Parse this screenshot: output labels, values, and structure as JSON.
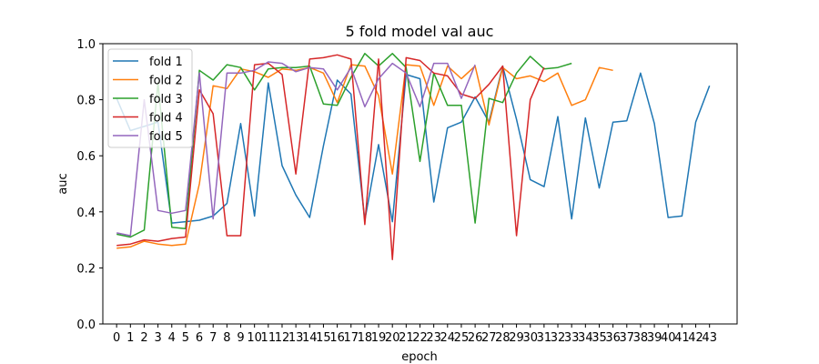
{
  "chart_data": {
    "type": "line",
    "title": "5 fold model val auc",
    "xlabel": "epoch",
    "ylabel": "auc",
    "xlim": [
      -1,
      45
    ],
    "ylim": [
      0.0,
      1.0
    ],
    "xticks": [
      0,
      1,
      2,
      3,
      4,
      5,
      6,
      7,
      8,
      9,
      10,
      11,
      12,
      13,
      14,
      15,
      16,
      17,
      18,
      19,
      20,
      21,
      22,
      23,
      24,
      25,
      26,
      27,
      28,
      29,
      30,
      31,
      32,
      33,
      34,
      35,
      36,
      37,
      38,
      39,
      40,
      41,
      42,
      43
    ],
    "yticks": [
      "0.0",
      "0.2",
      "0.4",
      "0.6",
      "0.8",
      "1.0"
    ],
    "legend_position": "top-left",
    "grid": false,
    "series": [
      {
        "name": "fold 1",
        "color": "#1f77b4",
        "values": [
          0.805,
          0.69,
          0.705,
          0.72,
          0.36,
          0.365,
          0.37,
          0.385,
          0.43,
          0.715,
          0.385,
          0.86,
          0.565,
          0.46,
          0.38,
          0.635,
          0.87,
          0.82,
          0.37,
          0.64,
          0.365,
          0.89,
          0.875,
          0.435,
          0.7,
          0.72,
          0.81,
          0.72,
          0.92,
          0.73,
          0.515,
          0.49,
          0.74,
          0.375,
          0.735,
          0.485,
          0.72,
          0.725,
          0.895,
          0.715,
          0.38,
          0.385,
          0.72,
          0.85
        ]
      },
      {
        "name": "fold 2",
        "color": "#ff7f0e",
        "values": [
          0.27,
          0.275,
          0.295,
          0.285,
          0.28,
          0.285,
          0.5,
          0.85,
          0.84,
          0.91,
          0.9,
          0.88,
          0.91,
          0.905,
          0.915,
          0.895,
          0.79,
          0.925,
          0.92,
          0.815,
          0.535,
          0.925,
          0.92,
          0.78,
          0.92,
          0.875,
          0.92,
          0.71,
          0.915,
          0.875,
          0.885,
          0.865,
          0.895,
          0.78,
          0.8,
          0.915,
          0.905
        ]
      },
      {
        "name": "fold 3",
        "color": "#2ca02c",
        "values": [
          0.32,
          0.31,
          0.335,
          0.86,
          0.345,
          0.34,
          0.905,
          0.87,
          0.925,
          0.915,
          0.835,
          0.91,
          0.915,
          0.915,
          0.92,
          0.785,
          0.78,
          0.88,
          0.965,
          0.92,
          0.965,
          0.915,
          0.58,
          0.895,
          0.78,
          0.78,
          0.36,
          0.805,
          0.79,
          0.895,
          0.955,
          0.91,
          0.915,
          0.93
        ]
      },
      {
        "name": "fold 4",
        "color": "#d62728",
        "values": [
          0.28,
          0.285,
          0.3,
          0.295,
          0.305,
          0.31,
          0.835,
          0.75,
          0.315,
          0.315,
          0.925,
          0.93,
          0.89,
          0.535,
          0.945,
          0.95,
          0.96,
          0.945,
          0.355,
          0.945,
          0.23,
          0.95,
          0.94,
          0.895,
          0.885,
          0.82,
          0.805,
          0.855,
          0.92,
          0.315,
          0.8,
          0.915
        ]
      },
      {
        "name": "fold 5",
        "color": "#9467bd",
        "values": [
          0.325,
          0.315,
          0.8,
          0.405,
          0.395,
          0.405,
          0.895,
          0.375,
          0.895,
          0.895,
          0.905,
          0.935,
          0.93,
          0.9,
          0.915,
          0.91,
          0.835,
          0.915,
          0.775,
          0.875,
          0.93,
          0.895,
          0.775,
          0.93,
          0.93,
          0.805,
          0.925
        ]
      }
    ]
  }
}
